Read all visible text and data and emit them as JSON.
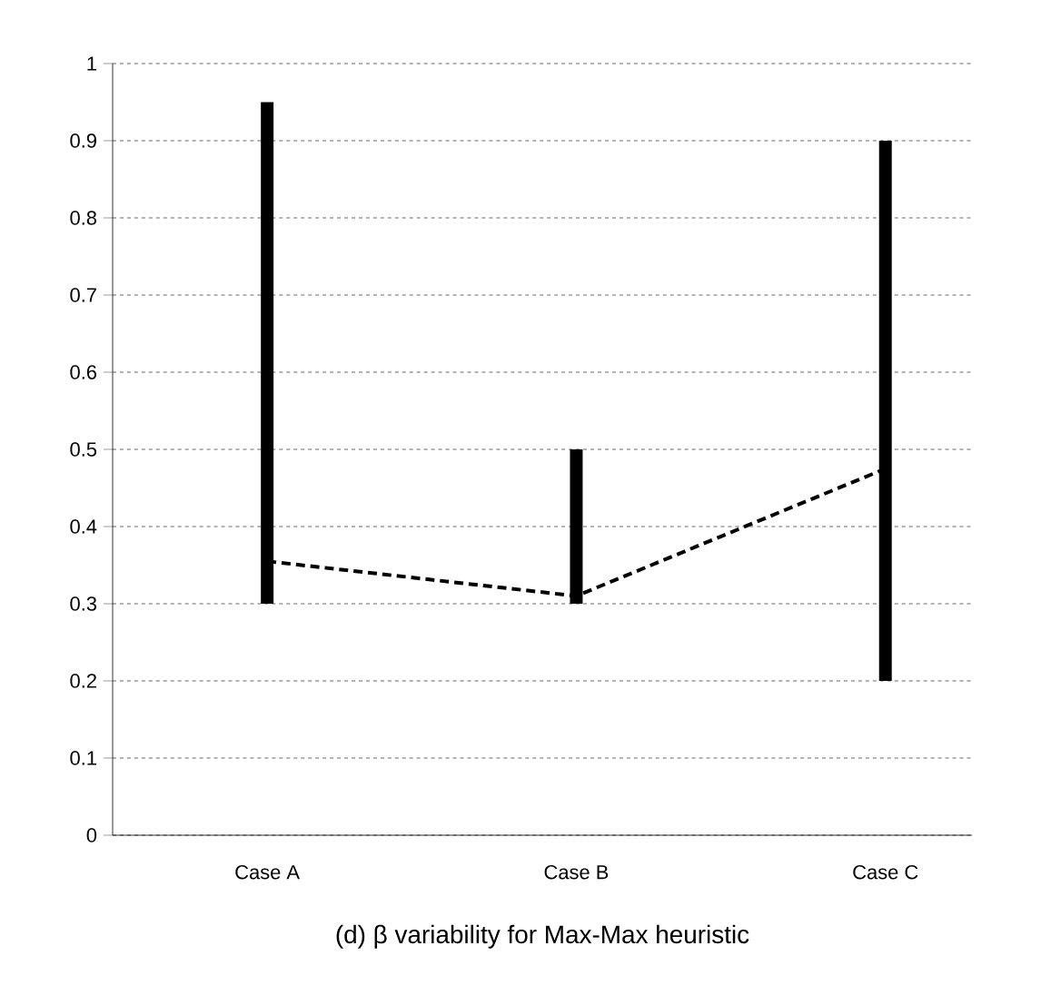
{
  "chart_data": {
    "type": "bar",
    "title": "(d) β variability for Max-Max heuristic",
    "categories": [
      "Case A",
      "Case B",
      "Case C"
    ],
    "series": [
      {
        "color": "#000000",
        "base": [
          0.3,
          0.3,
          0.2
        ],
        "values": [
          0.65,
          0.2,
          0.7
        ]
      },
      {
        "type": "line",
        "color": "#000000",
        "line_style": "dashed",
        "values": [
          0.355,
          0.31,
          0.475
        ]
      }
    ],
    "ylim": [
      0,
      1
    ],
    "yticks": [
      0,
      0.1,
      0.2,
      0.3,
      0.4,
      0.5,
      0.6,
      0.7,
      0.8,
      0.9,
      1
    ],
    "grid": "y",
    "marker": "none"
  }
}
